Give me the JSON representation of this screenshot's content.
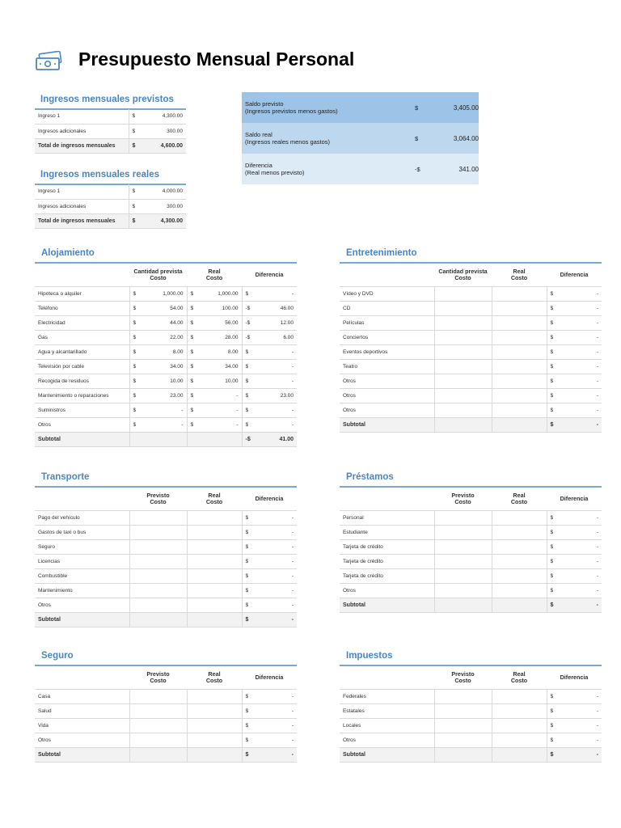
{
  "title": "Presupuesto Mensual Personal",
  "income_planned": {
    "title": "Ingresos mensuales previstos",
    "rows": [
      {
        "label": "Ingreso 1",
        "cur": "$",
        "value": "4,300.00"
      },
      {
        "label": "Ingresos adicionales",
        "cur": "$",
        "value": "300.00"
      }
    ],
    "total": {
      "label": "Total de ingresos mensuales",
      "cur": "$",
      "value": "4,600.00"
    }
  },
  "income_actual": {
    "title": "Ingresos mensuales reales",
    "rows": [
      {
        "label": "Ingreso 1",
        "cur": "$",
        "value": "4,000.00"
      },
      {
        "label": "Ingresos adicionales",
        "cur": "$",
        "value": "300.00"
      }
    ],
    "total": {
      "label": "Total de ingresos mensuales",
      "cur": "$",
      "value": "4,300.00"
    }
  },
  "summary": [
    {
      "label": "Saldo previsto",
      "sub": "(Ingresos previstos menos gastos)",
      "cur": "$",
      "value": "3,405.00",
      "bg": "#9dc3e6"
    },
    {
      "label": "Saldo real",
      "sub": "(Ingresos reales menos gastos)",
      "cur": "$",
      "value": "3,064.00",
      "bg": "#bdd7ee"
    },
    {
      "label": "Diferencia",
      "sub": "(Real menos previsto)",
      "cur": "-$",
      "value": "341.00",
      "bg": "#ddebf7"
    }
  ],
  "alojamiento": {
    "title": "Alojamiento",
    "headers": [
      "Cantidad prevista\nCosto",
      "Real\nCosto",
      "Diferencia"
    ],
    "rows": [
      {
        "label": "Hipoteca o alquiler",
        "p": "1,000.00",
        "r": "1,000.00",
        "dc": "$",
        "d": "-"
      },
      {
        "label": "Teléfono",
        "p": "54.00",
        "r": "100.00",
        "dc": "-$",
        "d": "46.00"
      },
      {
        "label": "Electricidad",
        "p": "44.00",
        "r": "56.00",
        "dc": "-$",
        "d": "12.00"
      },
      {
        "label": "Gas",
        "p": "22.00",
        "r": "28.00",
        "dc": "-$",
        "d": "6.00"
      },
      {
        "label": "Agua y alcantarillado",
        "p": "8.00",
        "r": "8.00",
        "dc": "$",
        "d": "-"
      },
      {
        "label": "Televisión por cable",
        "p": "34.00",
        "r": "34.00",
        "dc": "$",
        "d": "-"
      },
      {
        "label": "Recogida de residuos",
        "p": "10.00",
        "r": "10.00",
        "dc": "$",
        "d": "-"
      },
      {
        "label": "Mantenimiento o reparaciones",
        "p": "23.00",
        "r": "-",
        "dc": "$",
        "d": "23.00"
      },
      {
        "label": "Suministros",
        "p": "-",
        "r": "-",
        "dc": "$",
        "d": "-"
      },
      {
        "label": "Otros",
        "p": "-",
        "r": "-",
        "dc": "$",
        "d": "-"
      }
    ],
    "subtotal": {
      "label": "Subtotal",
      "dc": "-$",
      "d": "41.00"
    }
  },
  "entretenimiento": {
    "title": "Entretenimiento",
    "headers": [
      "Cantidad prevista\nCosto",
      "Real\nCosto",
      "Diferencia"
    ],
    "rows": [
      "Vídeo y DVD",
      "CD",
      "Películas",
      "Conciertos",
      "Eventos deportivos",
      "Teatro",
      "Otros",
      "Otros",
      "Otros"
    ],
    "subtotal": "Subtotal"
  },
  "transporte": {
    "title": "Transporte",
    "headers": [
      "Previsto\nCosto",
      "Real\nCosto",
      "Diferencia"
    ],
    "rows": [
      "Pago del vehículo",
      "Gastos de taxi o bus",
      "Seguro",
      "Licencias",
      "Combustible",
      "Mantenimiento",
      "Otros"
    ],
    "subtotal": "Subtotal"
  },
  "prestamos": {
    "title": "Préstamos",
    "headers": [
      "Previsto\nCosto",
      "Real\nCosto",
      "Diferencia"
    ],
    "rows": [
      "Personal",
      "Estudiante",
      "Tarjeta de crédito",
      "Tarjeta de crédito",
      "Tarjeta de crédito",
      "Otros"
    ],
    "subtotal": "Subtotal"
  },
  "seguro": {
    "title": "Seguro",
    "headers": [
      "Previsto\nCosto",
      "Real\nCosto",
      "Diferencia"
    ],
    "rows": [
      "Casa",
      "Salud",
      "Vida",
      "Otros"
    ],
    "subtotal": "Subtotal"
  },
  "impuestos": {
    "title": "Impuestos",
    "headers": [
      "Previsto\nCosto",
      "Real\nCosto",
      "Diferencia"
    ],
    "rows": [
      "Federales",
      "Estatales",
      "Locales",
      "Otros"
    ],
    "subtotal": "Subtotal"
  },
  "dash_symbol": "$",
  "dash_value": "-"
}
